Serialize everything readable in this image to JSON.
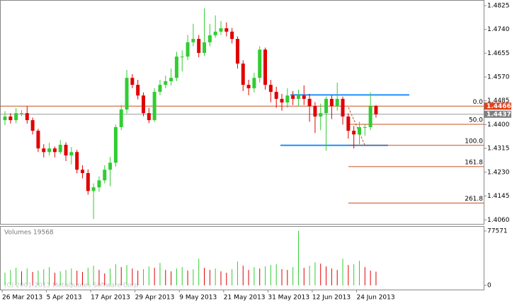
{
  "chart_data": {
    "type": "candlestick",
    "bull_color": "#32cd32",
    "bear_color": "#e00000",
    "categories": [
      "26 Mar 2013",
      null,
      null,
      null,
      null,
      null,
      null,
      null,
      "5 Apr 2013",
      null,
      null,
      null,
      null,
      null,
      null,
      null,
      "17 Apr 2013",
      null,
      null,
      null,
      null,
      null,
      null,
      null,
      "29 Apr 2013",
      null,
      null,
      null,
      null,
      null,
      null,
      null,
      "9 May 2013",
      null,
      null,
      null,
      null,
      null,
      null,
      null,
      "21 May 2013",
      null,
      null,
      null,
      null,
      null,
      null,
      null,
      "31 May 2013",
      null,
      null,
      null,
      null,
      null,
      null,
      null,
      "12 Jun 2013",
      null,
      null,
      null,
      null,
      null,
      null,
      null,
      "24 Jun 2013",
      null,
      null,
      null
    ],
    "open": [
      1.4416,
      1.4429,
      1.4416,
      1.4441,
      1.4441,
      1.4416,
      1.4378,
      1.4315,
      1.4302,
      1.4315,
      1.4302,
      1.4328,
      1.429,
      1.4302,
      1.4239,
      1.4227,
      1.4163,
      1.4176,
      1.4201,
      1.4239,
      1.4264,
      1.4391,
      1.4454,
      1.4567,
      1.4542,
      1.4504,
      1.4441,
      1.4416,
      1.4517,
      1.4542,
      1.4555,
      1.4567,
      1.4643,
      1.4643,
      1.4694,
      1.4706,
      1.4656,
      1.4694,
      1.4719,
      1.4732,
      1.4744,
      1.4732,
      1.4706,
      1.4618,
      1.4542,
      1.453,
      1.4567,
      1.4668,
      1.4542,
      1.4517,
      1.4492,
      1.4479,
      1.4504,
      1.4492,
      1.4504,
      1.4492,
      1.4466,
      1.4429,
      1.4441,
      1.4492,
      1.4466,
      1.4492,
      1.4429,
      1.4378,
      1.4365,
      1.4391,
      1.4391,
      1.4466
    ],
    "high": [
      1.4448,
      1.4441,
      1.4459,
      1.4452,
      1.4466,
      1.4425,
      1.4385,
      1.433,
      1.4335,
      1.4322,
      1.4345,
      1.4337,
      1.432,
      1.431,
      1.4255,
      1.424,
      1.419,
      1.4215,
      1.4255,
      1.4285,
      1.44,
      1.447,
      1.4595,
      1.458,
      1.456,
      1.4515,
      1.446,
      1.453,
      1.456,
      1.4575,
      1.46,
      1.466,
      1.4665,
      1.472,
      1.476,
      1.472,
      1.4815,
      1.476,
      1.479,
      1.477,
      1.4765,
      1.4745,
      1.4715,
      1.463,
      1.456,
      1.4585,
      1.468,
      1.4675,
      1.456,
      1.4535,
      1.451,
      1.453,
      1.452,
      1.4525,
      1.454,
      1.451,
      1.448,
      1.4475,
      1.45,
      1.4505,
      1.455,
      1.45,
      1.444,
      1.4395,
      1.441,
      1.44,
      1.4515,
      1.447
    ],
    "low": [
      1.4398,
      1.4404,
      1.4405,
      1.443,
      1.4404,
      1.4365,
      1.4302,
      1.4283,
      1.429,
      1.4283,
      1.4295,
      1.427,
      1.4258,
      1.4226,
      1.4208,
      1.415,
      1.4063,
      1.416,
      1.419,
      1.418,
      1.425,
      1.438,
      1.444,
      1.453,
      1.449,
      1.443,
      1.4405,
      1.441,
      1.4505,
      1.453,
      1.454,
      1.4555,
      1.459,
      1.463,
      1.468,
      1.464,
      1.4645,
      1.468,
      1.471,
      1.472,
      1.4715,
      1.469,
      1.46,
      1.452,
      1.4505,
      1.4515,
      1.455,
      1.4525,
      1.448,
      1.446,
      1.445,
      1.446,
      1.447,
      1.4465,
      1.447,
      1.441,
      1.437,
      1.438,
      1.4307,
      1.442,
      1.445,
      1.44,
      1.435,
      1.4315,
      1.433,
      1.436,
      1.438,
      1.4425
    ],
    "close": [
      1.4429,
      1.4416,
      1.4441,
      1.4441,
      1.4416,
      1.4378,
      1.4315,
      1.4302,
      1.4315,
      1.4302,
      1.4328,
      1.429,
      1.4302,
      1.4239,
      1.4227,
      1.4163,
      1.4176,
      1.4201,
      1.4239,
      1.4264,
      1.4391,
      1.4454,
      1.4567,
      1.4542,
      1.4504,
      1.4441,
      1.4416,
      1.4517,
      1.4542,
      1.4555,
      1.4567,
      1.4643,
      1.4643,
      1.4694,
      1.4706,
      1.4656,
      1.4694,
      1.4719,
      1.4732,
      1.4744,
      1.4732,
      1.4706,
      1.4618,
      1.4542,
      1.453,
      1.4567,
      1.4668,
      1.4542,
      1.4517,
      1.4492,
      1.4479,
      1.4504,
      1.4492,
      1.4504,
      1.4492,
      1.4466,
      1.4429,
      1.4441,
      1.4492,
      1.4466,
      1.4492,
      1.4429,
      1.4378,
      1.4365,
      1.4391,
      1.4391,
      1.4466,
      1.4437
    ],
    "ylim": [
      1.4043,
      1.4845
    ],
    "yticks": [
      {
        "value": 1.4825,
        "label": "1.4825"
      },
      {
        "value": 1.474,
        "label": "1.4740"
      },
      {
        "value": 1.4655,
        "label": "1.4655"
      },
      {
        "value": 1.457,
        "label": "1.4570"
      },
      {
        "value": 1.4485,
        "label": "1.4485"
      },
      {
        "value": 1.44,
        "label": "1.4400"
      },
      {
        "value": 1.4315,
        "label": "1.4315"
      },
      {
        "value": 1.423,
        "label": "1.4230"
      },
      {
        "value": 1.4145,
        "label": "1.4145"
      },
      {
        "value": 1.406,
        "label": "1.4060"
      }
    ],
    "price_labels": [
      {
        "value": 1.4466,
        "color": "#e0401a"
      },
      {
        "value": 1.4437,
        "color": "#808080"
      }
    ],
    "hlines": [
      {
        "value": 1.4506,
        "color": "#1e90ff"
      },
      {
        "value": 1.4326,
        "color": "#1e90ff"
      }
    ],
    "fibo": {
      "color": "#c8501e",
      "levels": [
        {
          "label": "0.0",
          "value": 1.4466
        },
        {
          "label": "50.0",
          "value": 1.4401
        },
        {
          "label": "100.0",
          "value": 1.4326
        },
        {
          "label": "161.8",
          "value": 1.425
        },
        {
          "label": "261.8",
          "value": 1.412
        }
      ]
    },
    "volume_title": "Volumes 19568",
    "volumes": [
      18000,
      22000,
      25000,
      20000,
      24000,
      19000,
      21000,
      23000,
      26000,
      18000,
      20000,
      22000,
      24000,
      21000,
      19000,
      25000,
      28000,
      22000,
      17000,
      24000,
      30000,
      26000,
      29000,
      24000,
      21000,
      23000,
      27000,
      25000,
      32000,
      22000,
      20000,
      24000,
      26000,
      21000,
      23000,
      38000,
      25000,
      22000,
      24000,
      20000,
      18000,
      23000,
      34000,
      28000,
      22000,
      26000,
      24000,
      27000,
      29000,
      30000,
      23000,
      22000,
      26000,
      77571,
      25000,
      28000,
      33000,
      31000,
      27000,
      24000,
      22000,
      38000,
      29000,
      30000,
      35000,
      26000,
      21000,
      19568
    ],
    "vylim": [
      0,
      77571
    ],
    "vyticks": [
      77571,
      0
    ],
    "copyright": "(C) 2001-2013 MetaQuotes Software Corp."
  }
}
